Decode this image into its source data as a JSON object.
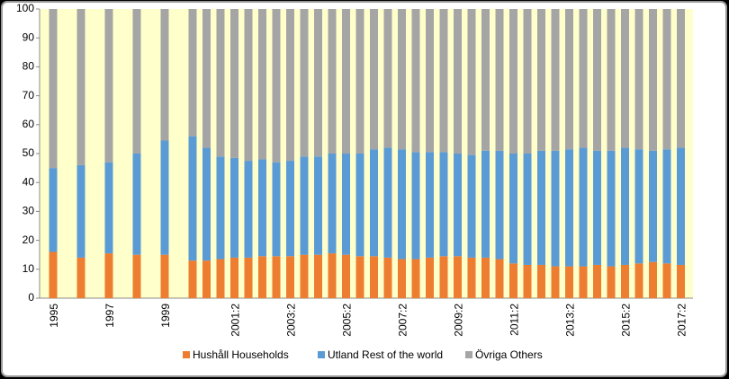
{
  "chart_data": {
    "type": "stacked-bar",
    "categories": [
      "1995",
      null,
      "1997",
      null,
      "1999",
      null,
      null,
      null,
      "2001:2",
      null,
      null,
      null,
      "2003:2",
      null,
      null,
      null,
      "2005:2",
      null,
      null,
      null,
      "2007:2",
      null,
      null,
      null,
      "2009:2",
      null,
      null,
      null,
      "2011:2",
      null,
      null,
      null,
      "2013:2",
      null,
      null,
      null,
      "2015:2",
      null,
      null,
      null,
      "2017:2"
    ],
    "series": [
      {
        "name": "Hushåll Households",
        "color": "#ed7d31",
        "values": [
          16,
          14,
          15.5,
          15,
          15,
          13,
          13,
          13.5,
          14,
          14,
          14.5,
          14.5,
          14.5,
          15,
          15,
          15.5,
          15,
          14.5,
          14.5,
          14,
          13.5,
          13.5,
          14,
          14.5,
          14.5,
          14,
          14,
          13.5,
          12,
          11.5,
          11.5,
          11,
          11,
          11,
          11.5,
          11,
          11.5,
          12,
          12.5,
          12,
          11.5
        ]
      },
      {
        "name": "Utland Rest of the world",
        "color": "#5b9bd5",
        "values": [
          29,
          32,
          31.5,
          35,
          39.5,
          43,
          39,
          35.5,
          34.5,
          33.5,
          33.5,
          32.5,
          33,
          34,
          34,
          34.5,
          35,
          35.5,
          37,
          38,
          38,
          37,
          36.5,
          36,
          35.5,
          35.5,
          37,
          37.5,
          38,
          38.5,
          39.5,
          40,
          40.5,
          41,
          39.5,
          40,
          40.5,
          39.5,
          38.5,
          39.5,
          40.5
        ]
      },
      {
        "name": "Övriga Others",
        "color": "#a5a5a5",
        "values": [
          55,
          54,
          53,
          50,
          45.5,
          44,
          48,
          51,
          51.5,
          52.5,
          52,
          53,
          52.5,
          51,
          51,
          50,
          50,
          50,
          48.5,
          48,
          48.5,
          49.5,
          49.5,
          49.5,
          50,
          50.5,
          49,
          49,
          50,
          50,
          49,
          49,
          48.5,
          48,
          49,
          49,
          48,
          48.5,
          49,
          48.5,
          48
        ]
      }
    ],
    "ylim": [
      0,
      100
    ],
    "yticks": [
      0,
      10,
      20,
      30,
      40,
      50,
      60,
      70,
      80,
      90,
      100
    ],
    "plot_background": "#ffffcc",
    "legend": "bottom"
  }
}
